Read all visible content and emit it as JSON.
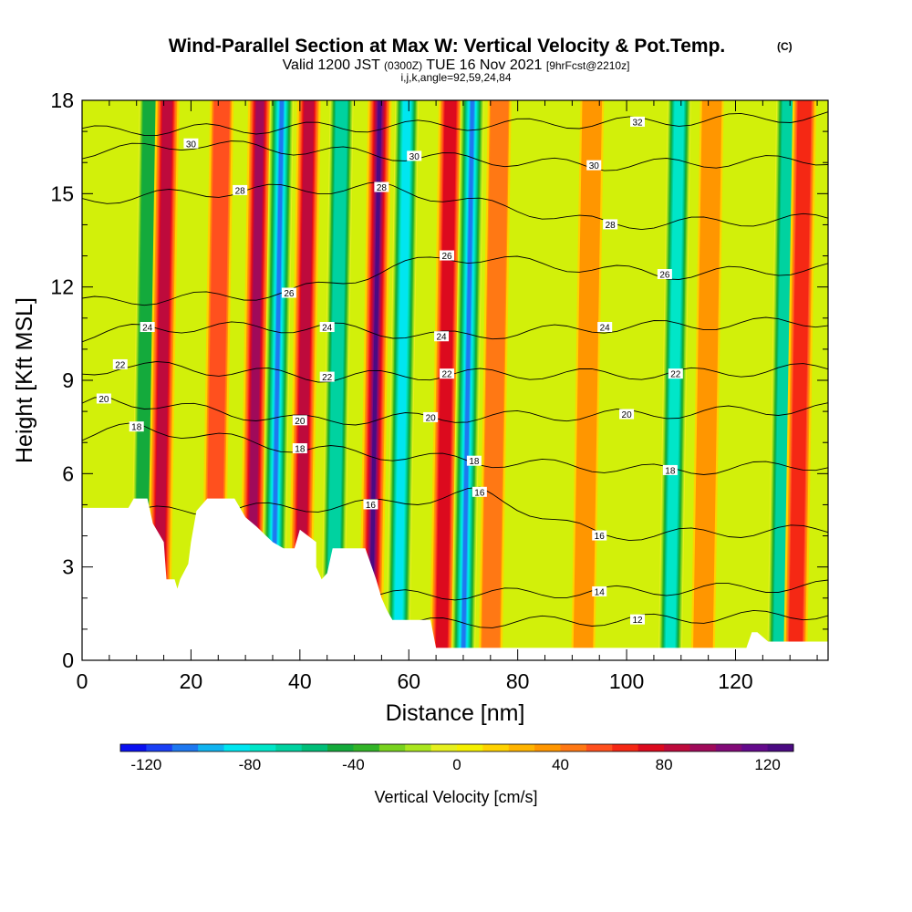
{
  "title": {
    "main": "Wind-Parallel Section at Max W: Vertical Velocity & Pot.Temp.",
    "mark": "(C)",
    "valid_prefix": "Valid 1200 JST",
    "valid_z": "(0300Z)",
    "valid_date": "TUE 16 Nov 2021",
    "fcst": "[9hrFcst@2210z]",
    "ijk": "i,j,k,angle=92,59,24,84"
  },
  "chart_data": {
    "type": "heatmap",
    "xlabel": "Distance [nm]",
    "ylabel": "Height [Kft MSL]",
    "xlim": [
      0,
      137
    ],
    "ylim": [
      0,
      18
    ],
    "xticks": [
      "0",
      "20",
      "40",
      "60",
      "80",
      "100",
      "120"
    ],
    "yticks": [
      "0",
      "3",
      "6",
      "9",
      "12",
      "15",
      "18"
    ],
    "colorbar": {
      "label": "Vertical Velocity [cm/s]",
      "range": [
        -130,
        130
      ],
      "ticks": [
        "-120",
        "-80",
        "-40",
        "0",
        "40",
        "80",
        "120"
      ],
      "colors": [
        "#0a10f0",
        "#1a40f5",
        "#1e78f0",
        "#10b4f0",
        "#00e6f0",
        "#00e6c8",
        "#00d2a0",
        "#00be78",
        "#14aa3c",
        "#32b428",
        "#78d21e",
        "#aae61e",
        "#e6f01e",
        "#f5f000",
        "#ffd200",
        "#ffb400",
        "#ff9600",
        "#ff7814",
        "#ff501e",
        "#f52814",
        "#dc0a1e",
        "#be0a3c",
        "#a00a5a",
        "#820a78",
        "#640a8c",
        "#4b0a82"
      ]
    },
    "updrafts": [
      {
        "x": 11,
        "w": -50
      },
      {
        "x": 14,
        "w": 80
      },
      {
        "x": 24,
        "w": 55
      },
      {
        "x": 31,
        "w": 90
      },
      {
        "x": 35,
        "w": -110
      },
      {
        "x": 40,
        "w": 85
      },
      {
        "x": 46,
        "w": -70
      },
      {
        "x": 53,
        "w": 125
      },
      {
        "x": 58,
        "w": -90
      },
      {
        "x": 66,
        "w": 70
      },
      {
        "x": 70,
        "w": -110
      },
      {
        "x": 75,
        "w": 40
      },
      {
        "x": 92,
        "w": 30
      },
      {
        "x": 108,
        "w": -80
      },
      {
        "x": 114,
        "w": 35
      },
      {
        "x": 128,
        "w": -70
      },
      {
        "x": 131,
        "w": 60
      }
    ],
    "theta_contour_labels": [
      {
        "x": 20,
        "y": 16.6,
        "t": "30"
      },
      {
        "x": 29,
        "y": 15.1,
        "t": "28"
      },
      {
        "x": 38,
        "y": 11.8,
        "t": "26"
      },
      {
        "x": 12,
        "y": 10.7,
        "t": "24"
      },
      {
        "x": 7,
        "y": 9.5,
        "t": "22"
      },
      {
        "x": 4,
        "y": 8.4,
        "t": "20"
      },
      {
        "x": 10,
        "y": 7.5,
        "t": "18"
      },
      {
        "x": 45,
        "y": 10.7,
        "t": "24"
      },
      {
        "x": 45,
        "y": 9.1,
        "t": "22"
      },
      {
        "x": 40,
        "y": 7.7,
        "t": "20"
      },
      {
        "x": 40,
        "y": 6.8,
        "t": "18"
      },
      {
        "x": 53,
        "y": 5.0,
        "t": "16"
      },
      {
        "x": 55,
        "y": 15.2,
        "t": "28"
      },
      {
        "x": 61,
        "y": 16.2,
        "t": "30"
      },
      {
        "x": 67,
        "y": 13.0,
        "t": "26"
      },
      {
        "x": 66,
        "y": 10.4,
        "t": "24"
      },
      {
        "x": 67,
        "y": 9.2,
        "t": "22"
      },
      {
        "x": 64,
        "y": 7.8,
        "t": "20"
      },
      {
        "x": 72,
        "y": 6.4,
        "t": "18"
      },
      {
        "x": 73,
        "y": 5.4,
        "t": "16"
      },
      {
        "x": 102,
        "y": 17.3,
        "t": "32"
      },
      {
        "x": 94,
        "y": 15.9,
        "t": "30"
      },
      {
        "x": 97,
        "y": 14.0,
        "t": "28"
      },
      {
        "x": 107,
        "y": 12.4,
        "t": "26"
      },
      {
        "x": 96,
        "y": 10.7,
        "t": "24"
      },
      {
        "x": 109,
        "y": 9.2,
        "t": "22"
      },
      {
        "x": 100,
        "y": 7.9,
        "t": "20"
      },
      {
        "x": 108,
        "y": 6.1,
        "t": "18"
      },
      {
        "x": 95,
        "y": 4.0,
        "t": "16"
      },
      {
        "x": 95,
        "y": 2.2,
        "t": "14"
      },
      {
        "x": 102,
        "y": 1.3,
        "t": "12"
      }
    ]
  }
}
